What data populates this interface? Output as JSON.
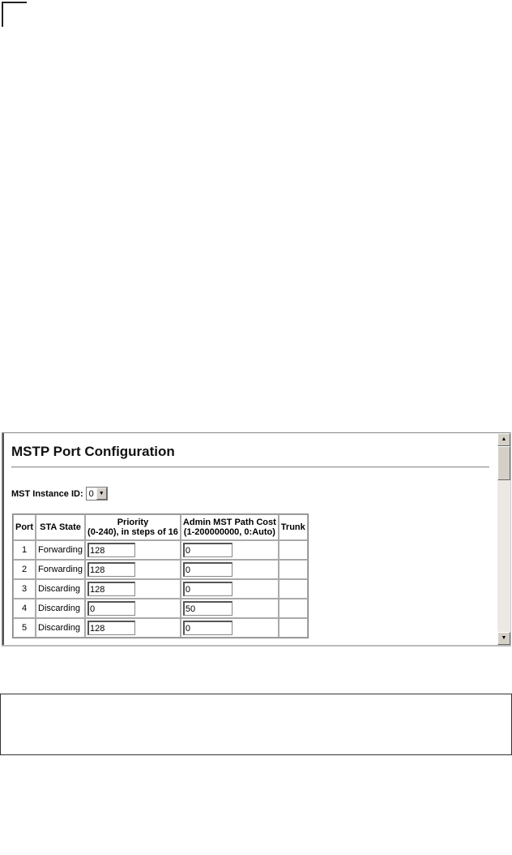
{
  "page": {
    "title": "MSTP Port Configuration"
  },
  "instance": {
    "label": "MST Instance ID:",
    "value": "0"
  },
  "table": {
    "headers": {
      "port": "Port",
      "state": "STA State",
      "priority": "Priority",
      "priority_sub": "(0-240), in steps of 16",
      "cost": "Admin MST Path Cost",
      "cost_sub": "(1-200000000, 0:Auto)",
      "trunk": "Trunk"
    },
    "rows": [
      {
        "port": "1",
        "state": "Forwarding",
        "priority": "128",
        "cost": "0",
        "trunk": ""
      },
      {
        "port": "2",
        "state": "Forwarding",
        "priority": "128",
        "cost": "0",
        "trunk": ""
      },
      {
        "port": "3",
        "state": "Discarding",
        "priority": "128",
        "cost": "0",
        "trunk": ""
      },
      {
        "port": "4",
        "state": "Discarding",
        "priority": "0",
        "cost": "50",
        "trunk": ""
      },
      {
        "port": "5",
        "state": "Discarding",
        "priority": "128",
        "cost": "0",
        "trunk": ""
      }
    ]
  },
  "icons": {
    "scroll_up": "arrow-up-icon",
    "scroll_down": "arrow-down-icon",
    "dropdown": "chevron-down-icon"
  }
}
